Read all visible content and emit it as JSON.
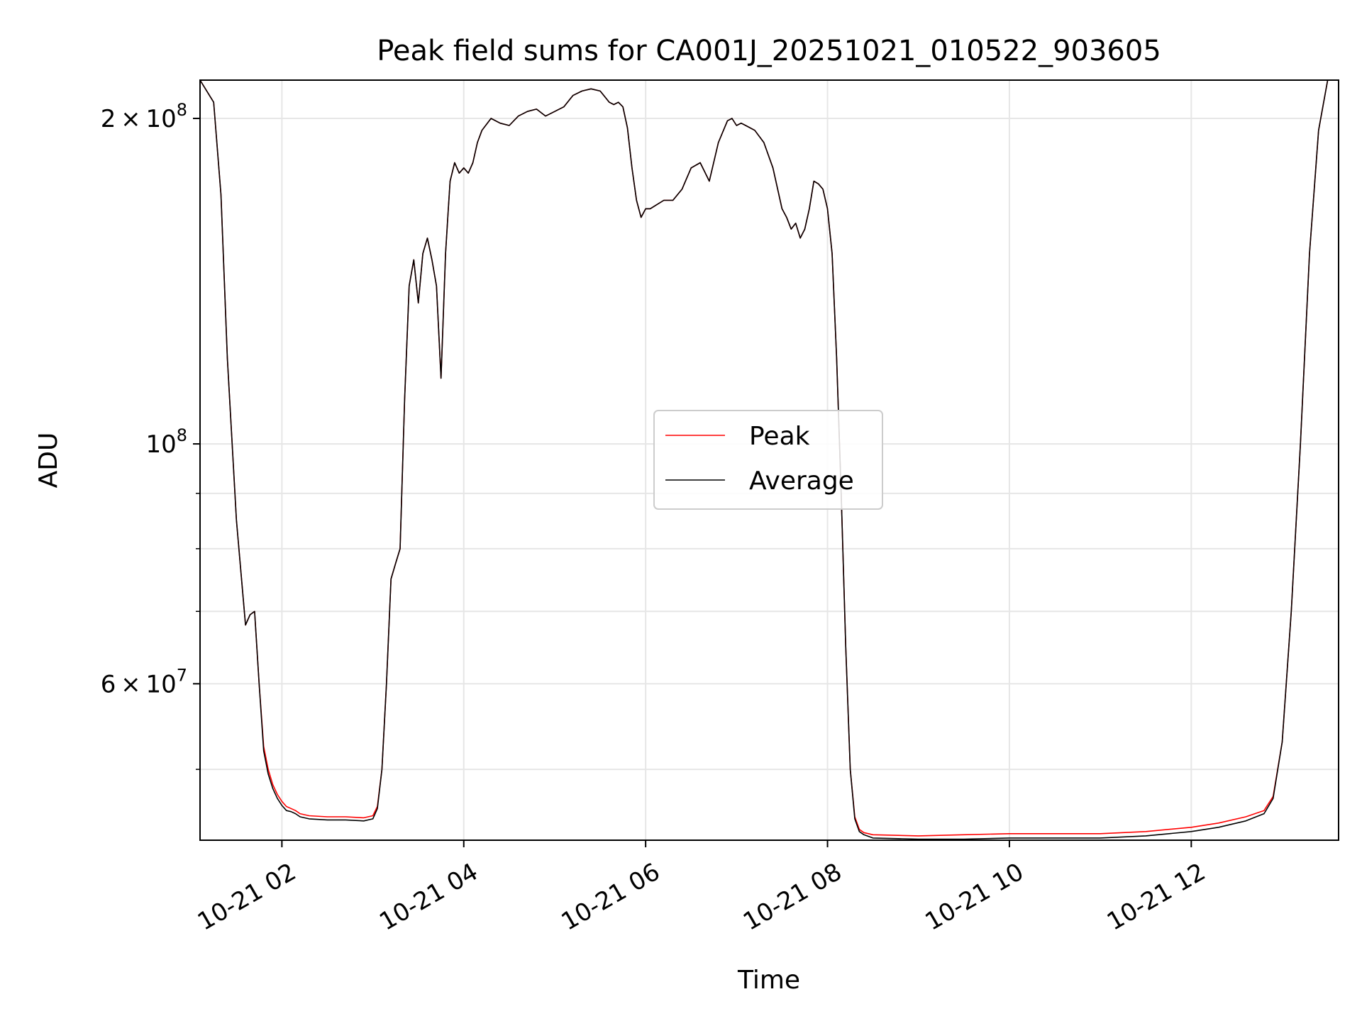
{
  "chart_data": {
    "type": "line",
    "title": "Peak field sums for CA001J_20251021_010522_903605",
    "xlabel": "Time",
    "ylabel": "ADU",
    "yscale": "log",
    "xlim": [
      1.1,
      13.62
    ],
    "ylim": [
      43000000,
      217000000
    ],
    "x_ticks": [
      2,
      4,
      6,
      8,
      10,
      12
    ],
    "x_tick_labels": [
      "10-21 02",
      "10-21 04",
      "10-21 06",
      "10-21 08",
      "10-21 10",
      "10-21 12"
    ],
    "y_major_ticks": [
      60000000,
      100000000,
      200000000
    ],
    "y_major_labels": [
      {
        "base": "6 × 10",
        "exp": "7"
      },
      {
        "base": "10",
        "exp": "8"
      },
      {
        "base": "2 × 10",
        "exp": "8"
      }
    ],
    "y_minor_ticks": [
      50000000,
      70000000,
      80000000,
      90000000
    ],
    "grid": true,
    "legend": {
      "placement": "center",
      "entries": [
        "Peak",
        "Average"
      ]
    },
    "colors": {
      "peak": "#ff0000",
      "average": "#000000",
      "grid": "#e6e6e6"
    },
    "series": [
      {
        "name": "Average",
        "x": [
          1.1,
          1.25,
          1.33,
          1.4,
          1.5,
          1.6,
          1.65,
          1.7,
          1.75,
          1.8,
          1.85,
          1.9,
          1.95,
          2.0,
          2.05,
          2.1,
          2.15,
          2.2,
          2.3,
          2.5,
          2.7,
          2.9,
          3.0,
          3.05,
          3.1,
          3.15,
          3.2,
          3.25,
          3.3,
          3.35,
          3.4,
          3.45,
          3.5,
          3.55,
          3.6,
          3.65,
          3.7,
          3.75,
          3.8,
          3.83,
          3.85,
          3.9,
          3.95,
          4.0,
          4.05,
          4.1,
          4.15,
          4.2,
          4.3,
          4.4,
          4.5,
          4.6,
          4.7,
          4.8,
          4.9,
          5.0,
          5.1,
          5.2,
          5.3,
          5.4,
          5.5,
          5.6,
          5.65,
          5.7,
          5.75,
          5.8,
          5.85,
          5.9,
          5.95,
          6.0,
          6.05,
          6.1,
          6.2,
          6.3,
          6.4,
          6.5,
          6.6,
          6.7,
          6.8,
          6.9,
          6.95,
          7.0,
          7.05,
          7.1,
          7.2,
          7.3,
          7.4,
          7.5,
          7.55,
          7.6,
          7.65,
          7.7,
          7.75,
          7.8,
          7.85,
          7.9,
          7.95,
          8.0,
          8.05,
          8.1,
          8.15,
          8.2,
          8.25,
          8.3,
          8.35,
          8.4,
          8.5,
          9.0,
          9.5,
          10.0,
          10.5,
          11.0,
          11.5,
          12.0,
          12.3,
          12.6,
          12.8,
          12.9,
          13.0,
          13.1,
          13.2,
          13.3,
          13.4,
          13.5,
          13.62
        ],
        "y": [
          217000000,
          207000000,
          170000000,
          120000000,
          85000000,
          68000000,
          69500000,
          70000000,
          60000000,
          52000000,
          49500000,
          48000000,
          47000000,
          46300000,
          45800000,
          45700000,
          45500000,
          45200000,
          45000000,
          44900000,
          44900000,
          44800000,
          45000000,
          46000000,
          50000000,
          60000000,
          75000000,
          77500000,
          80000000,
          110000000,
          140000000,
          148000000,
          135000000,
          150000000,
          155000000,
          148000000,
          140000000,
          115000000,
          150000000,
          165000000,
          175000000,
          182000000,
          178000000,
          180000000,
          178000000,
          182000000,
          190000000,
          195000000,
          200000000,
          198000000,
          197000000,
          201000000,
          203000000,
          204000000,
          201000000,
          203000000,
          205000000,
          210000000,
          212000000,
          213000000,
          212000000,
          207000000,
          206000000,
          207000000,
          205000000,
          196000000,
          180000000,
          168000000,
          162000000,
          165000000,
          165000000,
          166000000,
          168000000,
          168000000,
          172000000,
          180000000,
          182000000,
          175000000,
          190000000,
          199000000,
          200000000,
          197000000,
          198000000,
          197000000,
          195000000,
          190000000,
          180000000,
          165000000,
          162000000,
          158000000,
          160000000,
          155000000,
          158000000,
          165000000,
          175000000,
          174000000,
          172000000,
          165000000,
          150000000,
          120000000,
          90000000,
          65000000,
          50000000,
          45000000,
          43800000,
          43500000,
          43200000,
          43100000,
          43100000,
          43200000,
          43200000,
          43200000,
          43400000,
          43800000,
          44200000,
          44800000,
          45500000,
          47000000,
          53000000,
          70000000,
          100000000,
          150000000,
          195000000,
          217000000,
          217000000
        ]
      },
      {
        "name": "Peak",
        "x": [
          1.1,
          1.25,
          1.33,
          1.4,
          1.5,
          1.6,
          1.65,
          1.7,
          1.75,
          1.8,
          1.85,
          1.9,
          1.95,
          2.0,
          2.05,
          2.1,
          2.15,
          2.2,
          2.3,
          2.5,
          2.7,
          2.9,
          3.0,
          3.05,
          3.1,
          3.15,
          3.2,
          3.25,
          3.3,
          3.35,
          3.4,
          3.45,
          3.5,
          3.55,
          3.6,
          3.65,
          3.7,
          3.75,
          3.8,
          3.83,
          3.85,
          3.9,
          3.95,
          4.0,
          4.05,
          4.1,
          4.15,
          4.2,
          4.3,
          4.4,
          4.5,
          4.6,
          4.7,
          4.8,
          4.9,
          5.0,
          5.1,
          5.2,
          5.3,
          5.4,
          5.5,
          5.6,
          5.65,
          5.7,
          5.75,
          5.8,
          5.85,
          5.9,
          5.95,
          6.0,
          6.05,
          6.1,
          6.2,
          6.3,
          6.4,
          6.5,
          6.6,
          6.7,
          6.8,
          6.9,
          6.95,
          7.0,
          7.05,
          7.1,
          7.2,
          7.3,
          7.4,
          7.5,
          7.55,
          7.6,
          7.65,
          7.7,
          7.75,
          7.8,
          7.85,
          7.9,
          7.95,
          8.0,
          8.05,
          8.1,
          8.15,
          8.2,
          8.25,
          8.3,
          8.35,
          8.4,
          8.5,
          9.0,
          9.5,
          10.0,
          10.5,
          11.0,
          11.5,
          12.0,
          12.3,
          12.6,
          12.8,
          12.9,
          13.0,
          13.1,
          13.2,
          13.3,
          13.4,
          13.5,
          13.62
        ],
        "y": [
          217000000,
          207000000,
          170000000,
          120000000,
          85000000,
          68000000,
          69500000,
          70000000,
          60000000,
          52500000,
          50000000,
          48400000,
          47400000,
          46700000,
          46200000,
          46000000,
          45800000,
          45500000,
          45300000,
          45200000,
          45200000,
          45100000,
          45300000,
          46200000,
          50000000,
          60000000,
          75000000,
          77500000,
          80000000,
          110000000,
          140000000,
          148000000,
          135000000,
          150000000,
          155000000,
          148000000,
          140000000,
          115000000,
          150000000,
          165000000,
          175000000,
          182000000,
          178000000,
          180000000,
          178000000,
          182000000,
          190000000,
          195000000,
          200000000,
          198000000,
          197000000,
          201000000,
          203000000,
          204000000,
          201000000,
          203000000,
          205000000,
          210000000,
          212000000,
          213000000,
          212000000,
          207000000,
          206000000,
          207000000,
          205000000,
          196000000,
          180000000,
          168000000,
          162000000,
          165000000,
          165000000,
          166000000,
          168000000,
          168000000,
          172000000,
          180000000,
          182000000,
          175000000,
          190000000,
          199000000,
          200000000,
          197000000,
          198000000,
          197000000,
          195000000,
          190000000,
          180000000,
          165000000,
          162000000,
          158000000,
          160000000,
          155000000,
          158000000,
          165000000,
          175000000,
          174000000,
          172000000,
          165000000,
          150000000,
          120000000,
          90000000,
          65000000,
          50000000,
          45200000,
          44000000,
          43700000,
          43500000,
          43400000,
          43500000,
          43600000,
          43600000,
          43600000,
          43800000,
          44200000,
          44600000,
          45200000,
          45800000,
          47200000,
          53000000,
          70000000,
          100000000,
          150000000,
          195000000,
          217000000,
          217000000
        ]
      }
    ]
  }
}
